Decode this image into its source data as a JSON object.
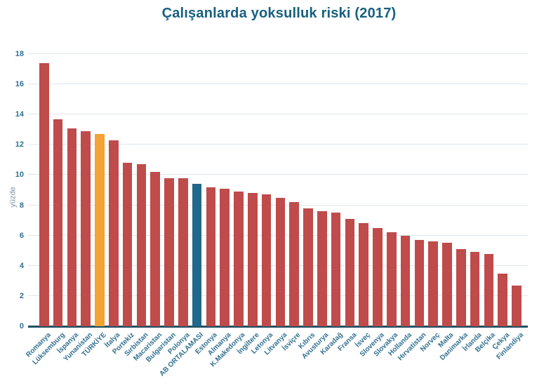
{
  "title": "Çalışanlarda yoksulluk riski (2017)",
  "chart_data": {
    "type": "bar",
    "title": "Çalışanlarda yoksulluk riski (2017)",
    "xlabel": "",
    "ylabel": "yüzde",
    "ylim": [
      0,
      18
    ],
    "yticks": [
      0,
      2,
      4,
      6,
      8,
      10,
      12,
      14,
      16,
      18
    ],
    "grid": true,
    "legend": "none",
    "categories": [
      "Romanya",
      "Lüksemburg",
      "İspanya",
      "Yunanistan",
      "TÜRKİYE",
      "İtalya",
      "Portekiz",
      "Sırbistan",
      "Macaristan",
      "Bulgaristan",
      "Polonya",
      "AB ORTALAMASI",
      "Estonya",
      "Almanya",
      "K.Makedonya",
      "İngiltere",
      "Letonya",
      "Litvanya",
      "İsviçre",
      "Kıbrıs",
      "Avusturya",
      "Karadağ",
      "Fransa",
      "İsveç",
      "Slovenya",
      "Slovakya",
      "Hollanda",
      "Hırvatistan",
      "Norveç",
      "Malta",
      "Danimarka",
      "İrlanda",
      "Belçika",
      "Çekya",
      "Finlandiya"
    ],
    "values": [
      17.4,
      13.7,
      13.1,
      12.9,
      12.7,
      12.3,
      10.8,
      10.7,
      10.2,
      9.8,
      9.8,
      9.4,
      9.2,
      9.1,
      8.9,
      8.8,
      8.7,
      8.5,
      8.2,
      7.8,
      7.6,
      7.5,
      7.1,
      6.8,
      6.5,
      6.2,
      6.0,
      5.7,
      5.6,
      5.5,
      5.1,
      4.9,
      4.8,
      3.5,
      2.7
    ],
    "bar_color_default": "#bf4b4b",
    "highlights": {
      "TÜRKİYE": "#f5a234",
      "AB ORTALAMASI": "#20698c"
    },
    "colors": {
      "title": "#17607e",
      "axis_text": "#31708f",
      "axis_title": "#7f95a3",
      "gridline": "#dde7ec",
      "baseline": "#1e5062"
    }
  }
}
